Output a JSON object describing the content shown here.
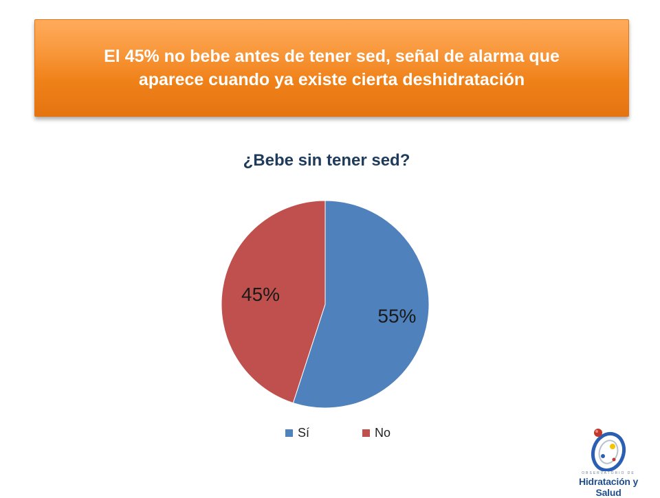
{
  "banner": {
    "text": "El 45% no bebe antes de tener sed, señal de alarma que aparece cuando ya existe cierta deshidratación"
  },
  "chart_data": {
    "type": "pie",
    "title": "¿Bebe sin tener sed?",
    "categories": [
      "Sí",
      "No"
    ],
    "values": [
      55,
      45
    ],
    "labels": [
      "55%",
      "45%"
    ],
    "colors": [
      "#4f81bd",
      "#c0504d"
    ],
    "start_angle": "12 o'clock",
    "direction": "clockwise",
    "legend": "bottom"
  },
  "logo": {
    "subtitle": "OBSERVATORIO DE",
    "name": "Hidratación y Salud",
    "icon": "hydration-logo-icon",
    "colors": {
      "blue": "#2b5fb3",
      "red": "#c0392b",
      "yellow": "#f5c400",
      "silver": "#b8c0cc"
    }
  }
}
